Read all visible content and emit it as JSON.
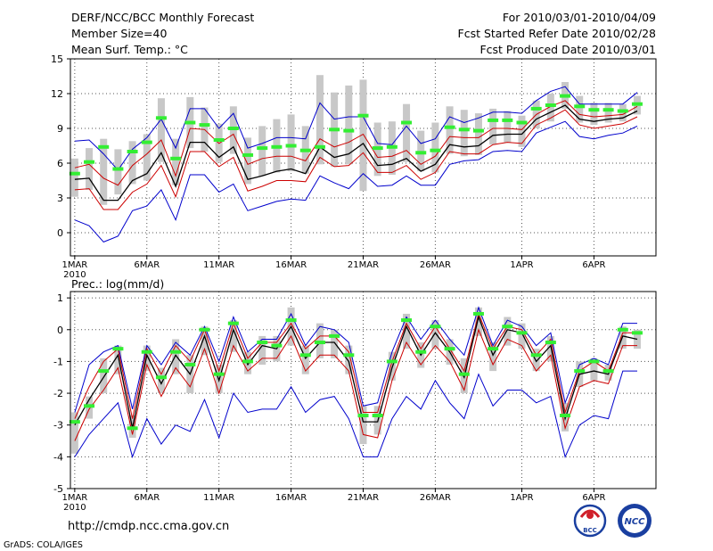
{
  "header": {
    "title": "DERF/NCC/BCC Monthly Forecast",
    "member_size": "Member Size=40",
    "top_variable": "Mean Surf. Temp.: °C",
    "period": "For 2010/03/01-2010/04/09",
    "fcst_started": "Fcst Started Refer Date 2010/02/28",
    "fcst_produced": "Fcst Produced Date 2010/03/01"
  },
  "bottom_variable": "Prec.: log(mm/d)",
  "footer": {
    "url": "http://cmdp.ncc.cma.gov.cn",
    "credit": "GrADS: COLA/IGES",
    "logo_bcc": "BCC",
    "logo_ncc": "NCC"
  },
  "colors": {
    "spread": "#c8c8c8",
    "ensemble_mean": "#000000",
    "one_sigma": "#cc0000",
    "extreme": "#0000cc",
    "median": "#33ee33",
    "grid": "#555555"
  },
  "chart_data": [
    {
      "type": "line",
      "title": "Mean Surf. Temp.: °C",
      "x_tick_labels": [
        "1MAR",
        "6MAR",
        "11MAR",
        "16MAR",
        "21MAR",
        "26MAR",
        "1APR",
        "6APR"
      ],
      "x_tick_days": [
        1,
        6,
        11,
        16,
        21,
        26,
        32,
        37
      ],
      "x_year_label": "2010",
      "ylim": [
        -2,
        15
      ],
      "yticks": [
        0,
        3,
        6,
        9,
        12,
        15
      ],
      "grid": true,
      "days": [
        1,
        2,
        3,
        4,
        5,
        6,
        7,
        8,
        9,
        10,
        11,
        12,
        13,
        14,
        15,
        16,
        17,
        18,
        19,
        20,
        21,
        22,
        23,
        24,
        25,
        26,
        27,
        28,
        29,
        30,
        31,
        32,
        33,
        34,
        35,
        36,
        37,
        38,
        39,
        40
      ],
      "series": [
        {
          "name": "maximum",
          "values": [
            7.9,
            8.0,
            6.8,
            5.4,
            7.2,
            8.2,
            9.8,
            7.3,
            10.7,
            10.7,
            9.0,
            10.3,
            7.3,
            7.7,
            8.2,
            8.2,
            8.1,
            11.2,
            9.8,
            10.0,
            10.0,
            7.7,
            7.6,
            9.2,
            7.7,
            8.1,
            10.0,
            9.5,
            9.9,
            10.4,
            10.4,
            10.3,
            11.4,
            12.2,
            12.6,
            11.1,
            11.1,
            11.1,
            11.1,
            12.1
          ]
        },
        {
          "name": "plus_one_sigma",
          "values": [
            5.6,
            5.9,
            4.7,
            4.1,
            5.8,
            6.8,
            8.0,
            4.9,
            9.0,
            8.9,
            7.7,
            8.5,
            5.9,
            6.4,
            6.6,
            6.6,
            6.2,
            8.1,
            7.4,
            7.8,
            8.5,
            6.5,
            6.6,
            7.1,
            5.9,
            6.6,
            8.3,
            8.2,
            8.2,
            9.0,
            9.0,
            8.9,
            10.2,
            10.9,
            11.4,
            10.2,
            10.0,
            10.1,
            10.2,
            10.9
          ]
        },
        {
          "name": "ensemble_mean",
          "values": [
            4.6,
            4.7,
            2.8,
            2.8,
            4.5,
            5.1,
            6.9,
            4.0,
            7.8,
            7.8,
            6.5,
            7.4,
            4.6,
            4.9,
            5.3,
            5.5,
            5.1,
            7.4,
            6.5,
            6.8,
            7.7,
            5.8,
            5.9,
            6.4,
            5.3,
            5.9,
            7.6,
            7.4,
            7.5,
            8.4,
            8.5,
            8.5,
            9.8,
            10.4,
            11.0,
            9.8,
            9.6,
            9.8,
            9.9,
            10.5
          ]
        },
        {
          "name": "minus_one_sigma",
          "values": [
            3.7,
            3.8,
            2.0,
            2.0,
            3.5,
            4.2,
            5.8,
            3.1,
            7.0,
            7.0,
            5.7,
            6.5,
            3.6,
            4.0,
            4.5,
            4.5,
            4.4,
            6.5,
            5.7,
            5.8,
            6.9,
            5.2,
            5.2,
            5.8,
            4.6,
            5.2,
            7.0,
            6.8,
            6.8,
            7.6,
            7.8,
            7.7,
            9.3,
            9.9,
            10.6,
            9.3,
            9.0,
            9.2,
            9.4,
            10.0
          ]
        },
        {
          "name": "minimum",
          "values": [
            1.1,
            0.6,
            -0.8,
            -0.3,
            1.9,
            2.3,
            3.7,
            1.1,
            5.0,
            5.0,
            3.5,
            4.2,
            1.9,
            2.3,
            2.7,
            2.9,
            2.8,
            4.9,
            4.3,
            3.8,
            5.1,
            4.0,
            4.1,
            4.9,
            4.1,
            4.1,
            5.9,
            6.2,
            6.3,
            7.0,
            7.1,
            7.0,
            8.6,
            9.1,
            9.6,
            8.3,
            8.1,
            8.4,
            8.6,
            9.2
          ]
        }
      ],
      "median_marks": [
        5.1,
        6.1,
        7.4,
        5.5,
        7.0,
        7.8,
        9.9,
        6.4,
        9.5,
        9.3,
        8.0,
        9.0,
        6.7,
        7.3,
        7.4,
        7.5,
        7.1,
        7.4,
        8.9,
        8.8,
        10.1,
        7.3,
        7.4,
        9.5,
        6.9,
        7.1,
        9.1,
        8.9,
        8.8,
        9.7,
        9.7,
        9.5,
        10.7,
        11.0,
        11.8,
        10.9,
        10.6,
        10.6,
        10.5,
        11.1
      ],
      "spread_low": [
        3.1,
        3.7,
        2.4,
        3.3,
        4.2,
        4.5,
        6.1,
        4.1,
        7.3,
        7.0,
        6.1,
        6.8,
        4.2,
        4.9,
        5.2,
        5.3,
        5.1,
        5.9,
        5.7,
        5.9,
        3.6,
        4.9,
        5.0,
        6.1,
        5.3,
        5.2,
        6.8,
        6.6,
        6.7,
        7.6,
        7.8,
        7.4,
        9.0,
        9.6,
        10.7,
        9.5,
        9.3,
        9.5,
        9.6,
        10.2
      ],
      "spread_high": [
        6.4,
        7.3,
        8.1,
        7.2,
        7.9,
        8.5,
        11.6,
        8.1,
        11.7,
        10.8,
        9.4,
        10.9,
        8.2,
        9.2,
        9.8,
        10.2,
        9.2,
        13.6,
        12.1,
        12.7,
        13.2,
        9.5,
        9.6,
        11.1,
        8.8,
        9.5,
        10.9,
        10.6,
        10.3,
        10.7,
        10.5,
        10.1,
        11.4,
        12.0,
        13.0,
        11.8,
        11.2,
        11.2,
        11.1,
        11.8
      ]
    },
    {
      "type": "line",
      "title": "Prec.: log(mm/d)",
      "x_tick_labels": [
        "1MAR",
        "6MAR",
        "11MAR",
        "16MAR",
        "21MAR",
        "26MAR",
        "1APR",
        "6APR"
      ],
      "x_tick_days": [
        1,
        6,
        11,
        16,
        21,
        26,
        32,
        37
      ],
      "x_year_label": "2010",
      "ylim": [
        -5,
        1.2
      ],
      "yticks": [
        -5,
        -4,
        -3,
        -2,
        -1,
        0,
        1
      ],
      "grid": true,
      "days": [
        1,
        2,
        3,
        4,
        5,
        6,
        7,
        8,
        9,
        10,
        11,
        12,
        13,
        14,
        15,
        16,
        17,
        18,
        19,
        20,
        21,
        22,
        23,
        24,
        25,
        26,
        27,
        28,
        29,
        30,
        31,
        32,
        33,
        34,
        35,
        36,
        37,
        38,
        39,
        40
      ],
      "series": [
        {
          "name": "maximum",
          "values": [
            -2.6,
            -1.1,
            -0.7,
            -0.5,
            -2.5,
            -0.5,
            -1.1,
            -0.4,
            -0.8,
            0.1,
            -1.0,
            0.4,
            -0.7,
            -0.3,
            -0.3,
            0.5,
            -0.5,
            0.1,
            0.0,
            -0.4,
            -2.4,
            -2.3,
            -0.7,
            0.4,
            -0.3,
            0.3,
            -0.3,
            -0.8,
            0.7,
            -0.5,
            0.3,
            0.1,
            -0.5,
            -0.1,
            -2.3,
            -1.1,
            -0.9,
            -1.1,
            0.2,
            0.2
          ]
        },
        {
          "name": "plus_one_sigma",
          "values": [
            -2.8,
            -1.8,
            -1.0,
            -0.6,
            -2.8,
            -0.6,
            -1.4,
            -0.5,
            -1.0,
            -0.0,
            -1.3,
            0.2,
            -0.9,
            -0.4,
            -0.4,
            0.2,
            -0.6,
            -0.2,
            -0.2,
            -0.7,
            -2.6,
            -2.6,
            -1.0,
            0.2,
            -0.6,
            0.1,
            -0.6,
            -1.3,
            0.5,
            -0.6,
            0.1,
            -0.0,
            -0.8,
            -0.3,
            -2.6,
            -1.3,
            -1.0,
            -1.3,
            -0.1,
            -0.1
          ]
        },
        {
          "name": "ensemble_mean",
          "values": [
            -3.0,
            -2.2,
            -1.5,
            -0.8,
            -3.1,
            -0.8,
            -1.7,
            -0.8,
            -1.4,
            -0.2,
            -1.6,
            0.0,
            -1.1,
            -0.5,
            -0.6,
            0.1,
            -0.9,
            -0.4,
            -0.4,
            -1.0,
            -2.9,
            -2.9,
            -1.2,
            0.1,
            -0.8,
            -0.1,
            -0.7,
            -1.5,
            0.4,
            -0.8,
            0.0,
            -0.1,
            -1.0,
            -0.5,
            -2.8,
            -1.4,
            -1.3,
            -1.4,
            -0.2,
            -0.3
          ]
        },
        {
          "name": "minus_one_sigma",
          "values": [
            -3.5,
            -2.5,
            -1.9,
            -1.2,
            -3.3,
            -1.1,
            -2.1,
            -1.2,
            -1.8,
            -0.6,
            -2.0,
            -0.5,
            -1.3,
            -0.9,
            -0.9,
            -0.2,
            -1.3,
            -0.8,
            -0.8,
            -1.3,
            -3.3,
            -3.4,
            -1.6,
            -0.4,
            -1.1,
            -0.5,
            -1.0,
            -1.9,
            -0.0,
            -1.1,
            -0.3,
            -0.5,
            -1.3,
            -0.8,
            -3.1,
            -1.8,
            -1.6,
            -1.7,
            -0.5,
            -0.5
          ]
        },
        {
          "name": "minimum",
          "values": [
            -4.0,
            -3.3,
            -2.8,
            -2.3,
            -4.0,
            -2.8,
            -3.6,
            -3.0,
            -3.2,
            -2.2,
            -3.4,
            -2.0,
            -2.6,
            -2.5,
            -2.5,
            -1.8,
            -2.6,
            -2.2,
            -2.1,
            -2.8,
            -4.0,
            -4.0,
            -2.8,
            -2.1,
            -2.5,
            -1.6,
            -2.3,
            -2.8,
            -1.4,
            -2.4,
            -1.9,
            -1.9,
            -2.3,
            -2.1,
            -4.0,
            -3.0,
            -2.7,
            -2.8,
            -1.3,
            -1.3
          ]
        }
      ],
      "median_marks": [
        -2.9,
        -2.4,
        -1.3,
        -0.6,
        -3.1,
        -0.7,
        -1.5,
        -0.7,
        -1.1,
        0.0,
        -1.4,
        0.2,
        -1.0,
        -0.4,
        -0.5,
        0.3,
        -0.8,
        -0.4,
        -0.2,
        -0.8,
        -2.7,
        -2.7,
        -1.0,
        0.3,
        -0.7,
        0.1,
        -0.6,
        -1.4,
        0.5,
        -0.6,
        0.1,
        -0.1,
        -0.8,
        -0.4,
        -2.7,
        -1.3,
        -1.0,
        -1.3,
        0.0,
        -0.1
      ],
      "spread_low": [
        -3.9,
        -2.8,
        -2.0,
        -1.4,
        -3.4,
        -1.3,
        -2.0,
        -1.4,
        -2.0,
        -0.8,
        -2.0,
        -0.7,
        -1.4,
        -1.1,
        -1.0,
        -0.5,
        -1.4,
        -0.9,
        -0.9,
        -1.4,
        -3.6,
        -3.3,
        -1.6,
        -0.6,
        -1.2,
        -0.6,
        -1.1,
        -2.0,
        -0.2,
        -1.3,
        -0.5,
        -0.6,
        -1.3,
        -1.0,
        -3.2,
        -1.8,
        -1.6,
        -1.6,
        -0.6,
        -0.6
      ],
      "spread_high": [
        -2.6,
        -2.1,
        -0.9,
        -0.5,
        -2.7,
        -0.5,
        -1.2,
        -0.3,
        -0.8,
        0.1,
        -1.1,
        0.3,
        -0.7,
        -0.2,
        -0.2,
        0.7,
        -0.5,
        0.2,
        0.0,
        -0.5,
        -2.4,
        -2.4,
        -0.7,
        0.5,
        -0.4,
        0.3,
        -0.3,
        -0.9,
        0.7,
        -0.4,
        0.4,
        0.2,
        -0.6,
        -0.2,
        -2.3,
        -1.0,
        -0.9,
        -1.1,
        0.1,
        0.0
      ]
    }
  ]
}
